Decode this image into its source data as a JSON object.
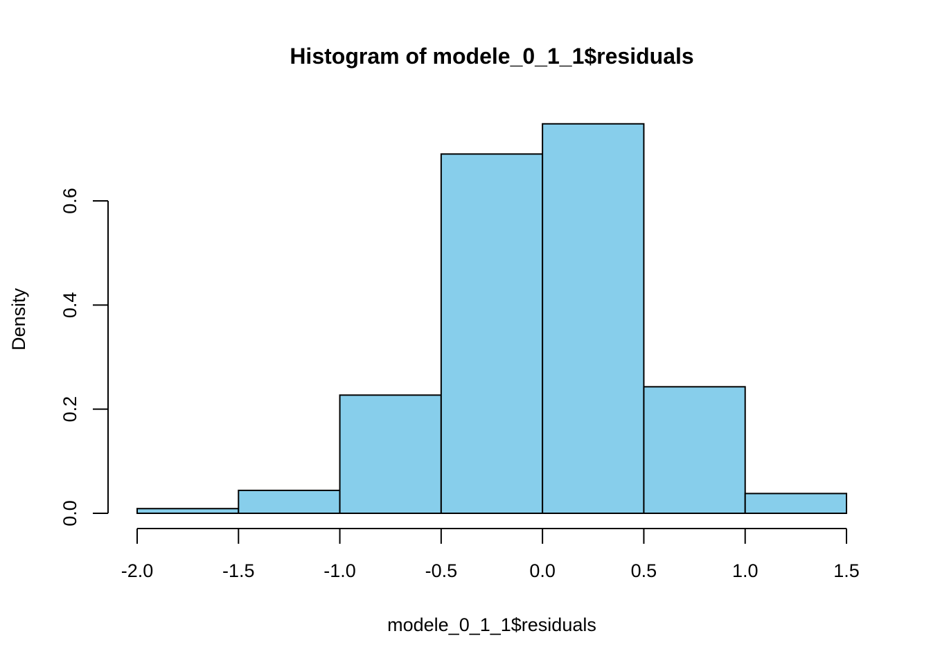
{
  "chart_data": {
    "type": "bar",
    "title": "Histogram of modele_0_1_1$residuals",
    "xlabel": "modele_0_1_1$residuals",
    "ylabel": "Density",
    "bins": [
      {
        "x0": -2.0,
        "x1": -1.5,
        "density": 0.009
      },
      {
        "x0": -1.5,
        "x1": -1.0,
        "density": 0.044
      },
      {
        "x0": -1.0,
        "x1": -0.5,
        "density": 0.227
      },
      {
        "x0": -0.5,
        "x1": 0.0,
        "density": 0.69
      },
      {
        "x0": 0.0,
        "x1": 0.5,
        "density": 0.748
      },
      {
        "x0": 0.5,
        "x1": 1.0,
        "density": 0.243
      },
      {
        "x0": 1.0,
        "x1": 1.5,
        "density": 0.038
      }
    ],
    "xlim": [
      -2.0,
      1.5
    ],
    "ylim": [
      0,
      0.6
    ],
    "x_ticks": [
      {
        "value": -2.0,
        "label": "-2.0"
      },
      {
        "value": -1.5,
        "label": "-1.5"
      },
      {
        "value": -1.0,
        "label": "-1.0"
      },
      {
        "value": -0.5,
        "label": "-0.5"
      },
      {
        "value": 0.0,
        "label": "0.0"
      },
      {
        "value": 0.5,
        "label": "0.5"
      },
      {
        "value": 1.0,
        "label": "1.0"
      },
      {
        "value": 1.5,
        "label": "1.5"
      }
    ],
    "y_ticks": [
      {
        "value": 0.0,
        "label": "0.0"
      },
      {
        "value": 0.2,
        "label": "0.2"
      },
      {
        "value": 0.4,
        "label": "0.4"
      },
      {
        "value": 0.6,
        "label": "0.6"
      }
    ],
    "bar_color": "#87ceeb",
    "border_color": "#000000",
    "grid": false,
    "legend": "none"
  }
}
